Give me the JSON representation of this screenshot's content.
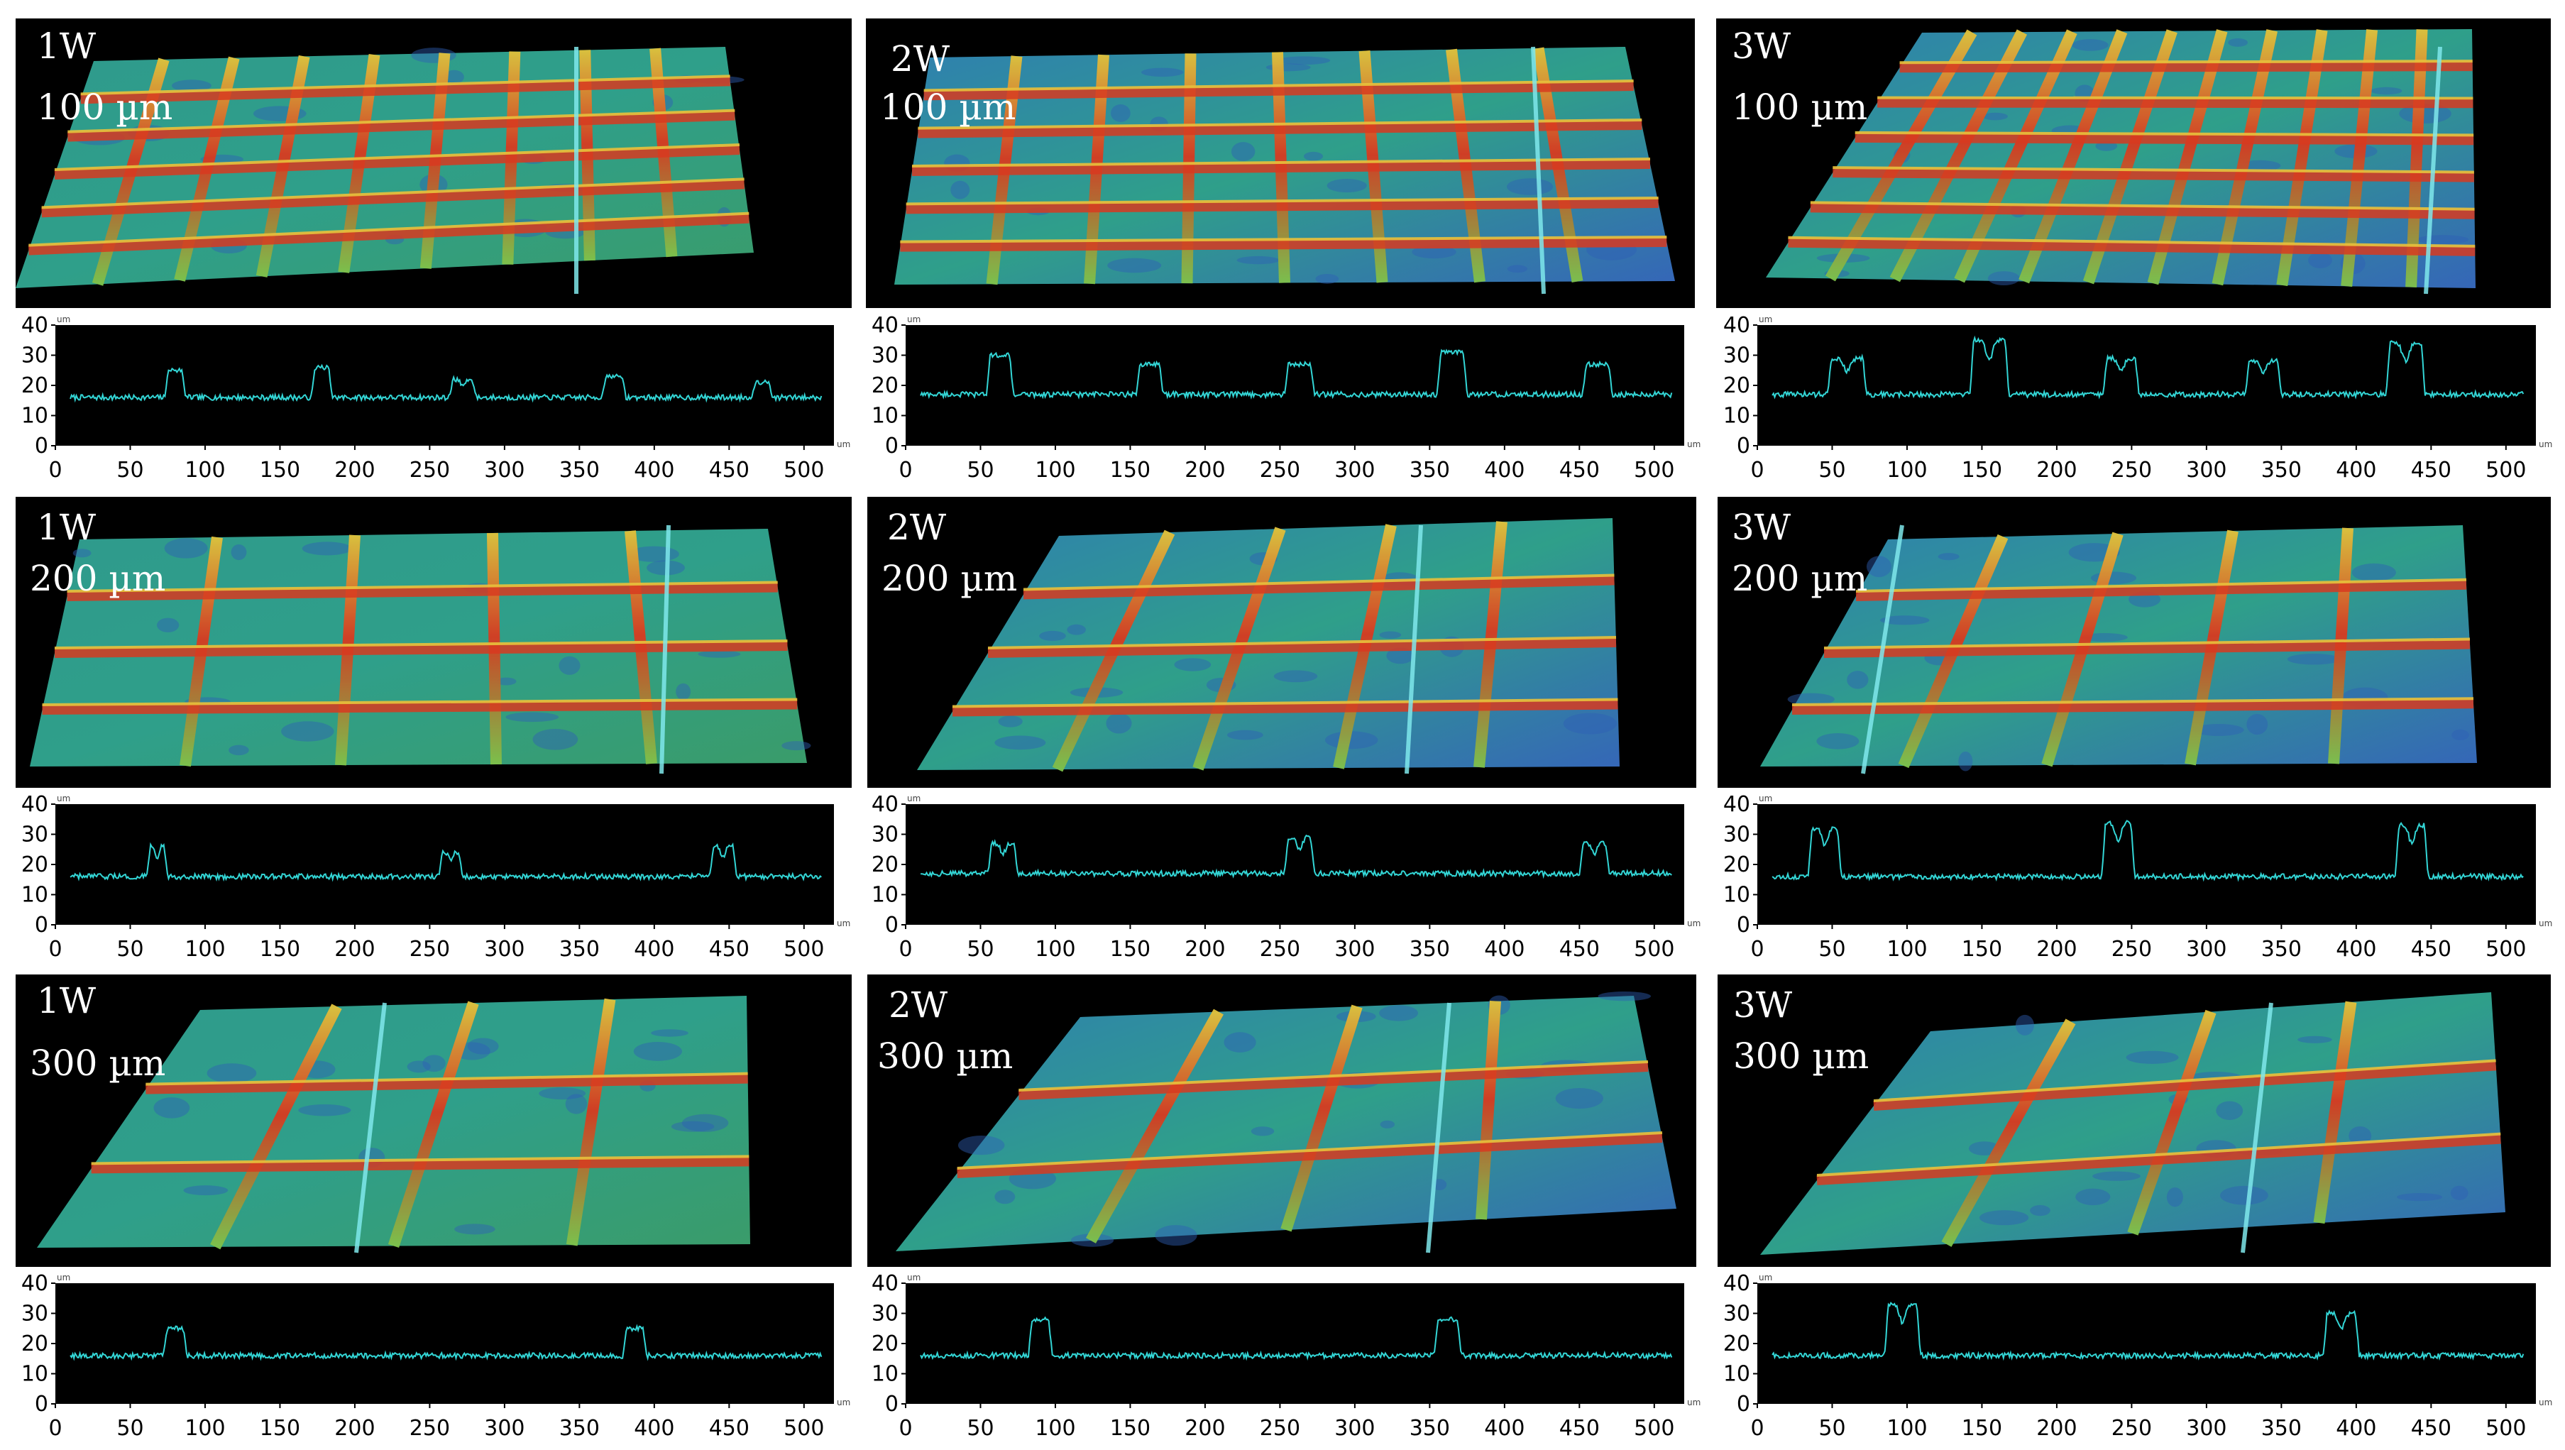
{
  "figure": {
    "colors": {
      "surface_bg": "#000000",
      "profile_bg": "#000000",
      "trace": "#33d6d6",
      "label_text": "#ffffff",
      "tick_text": "#000000",
      "height_low": "#2f5fb5",
      "height_mid": "#2f9f8a",
      "height_high": "#d83a20"
    },
    "colorscale_note": "blue = low, green = mid, yellow/orange/red = high (raised lines)"
  },
  "panels": [
    {
      "power": "1W",
      "spacing": "100 µm"
    },
    {
      "power": "2W",
      "spacing": "100 µm"
    },
    {
      "power": "3W",
      "spacing": "100 µm"
    },
    {
      "power": "1W",
      "spacing": "200 µm"
    },
    {
      "power": "2W",
      "spacing": "200 µm"
    },
    {
      "power": "3W",
      "spacing": "200 µm"
    },
    {
      "power": "1W",
      "spacing": "300 µm"
    },
    {
      "power": "2W",
      "spacing": "300 µm"
    },
    {
      "power": "3W",
      "spacing": "300 µm"
    }
  ],
  "chart_data": [
    {
      "type": "line",
      "power": "1W",
      "spacing_um": 100,
      "xlabel": "um",
      "ylabel": "um",
      "xlim": [
        0,
        520
      ],
      "ylim": [
        0,
        40
      ],
      "xticks": [
        0,
        50,
        100,
        150,
        200,
        250,
        300,
        350,
        400,
        450,
        500
      ],
      "yticks": [
        0,
        10,
        20,
        30,
        40
      ],
      "baseline": 16,
      "peaks": [
        {
          "x": 80,
          "h": 25,
          "w": 14
        },
        {
          "x": 178,
          "h": 26,
          "w": 14
        },
        {
          "x": 272,
          "h": 22,
          "w": 18,
          "dbl": true
        },
        {
          "x": 373,
          "h": 23,
          "w": 16
        },
        {
          "x": 472,
          "h": 21,
          "w": 14
        }
      ]
    },
    {
      "type": "line",
      "power": "2W",
      "spacing_um": 100,
      "xlabel": "um",
      "ylabel": "um",
      "xlim": [
        0,
        520
      ],
      "ylim": [
        0,
        40
      ],
      "xticks": [
        0,
        50,
        100,
        150,
        200,
        250,
        300,
        350,
        400,
        450,
        500
      ],
      "yticks": [
        0,
        10,
        20,
        30,
        40
      ],
      "baseline": 17,
      "peaks": [
        {
          "x": 63,
          "h": 30,
          "w": 18
        },
        {
          "x": 163,
          "h": 27,
          "w": 18
        },
        {
          "x": 263,
          "h": 27,
          "w": 20
        },
        {
          "x": 365,
          "h": 31,
          "w": 20
        },
        {
          "x": 462,
          "h": 27,
          "w": 20
        }
      ]
    },
    {
      "type": "line",
      "power": "3W",
      "spacing_um": 100,
      "xlabel": "um",
      "ylabel": "um",
      "xlim": [
        0,
        520
      ],
      "ylim": [
        0,
        40
      ],
      "xticks": [
        0,
        50,
        100,
        150,
        200,
        250,
        300,
        350,
        400,
        450,
        500
      ],
      "yticks": [
        0,
        10,
        20,
        30,
        40
      ],
      "baseline": 17,
      "peaks": [
        {
          "x": 60,
          "h": 29,
          "w": 26,
          "dbl": true
        },
        {
          "x": 155,
          "h": 35,
          "w": 26,
          "dbl": true
        },
        {
          "x": 243,
          "h": 29,
          "w": 24,
          "dbl": true
        },
        {
          "x": 338,
          "h": 28,
          "w": 24,
          "dbl": true
        },
        {
          "x": 433,
          "h": 34,
          "w": 26,
          "dbl": true
        }
      ]
    },
    {
      "type": "line",
      "power": "1W",
      "spacing_um": 200,
      "xlabel": "um",
      "ylabel": "um",
      "xlim": [
        0,
        520
      ],
      "ylim": [
        0,
        40
      ],
      "xticks": [
        0,
        50,
        100,
        150,
        200,
        250,
        300,
        350,
        400,
        450,
        500
      ],
      "yticks": [
        0,
        10,
        20,
        30,
        40
      ],
      "baseline": 16,
      "peaks": [
        {
          "x": 68,
          "h": 26,
          "w": 14,
          "dbl": true
        },
        {
          "x": 264,
          "h": 24,
          "w": 16,
          "dbl": true
        },
        {
          "x": 446,
          "h": 26,
          "w": 18,
          "dbl": true
        }
      ]
    },
    {
      "type": "line",
      "power": "2W",
      "spacing_um": 200,
      "xlabel": "um",
      "ylabel": "um",
      "xlim": [
        0,
        520
      ],
      "ylim": [
        0,
        40
      ],
      "xticks": [
        0,
        50,
        100,
        150,
        200,
        250,
        300,
        350,
        400,
        450,
        500
      ],
      "yticks": [
        0,
        10,
        20,
        30,
        40
      ],
      "baseline": 17,
      "peaks": [
        {
          "x": 65,
          "h": 27,
          "w": 20,
          "dbl": true
        },
        {
          "x": 263,
          "h": 29,
          "w": 20,
          "dbl": true
        },
        {
          "x": 460,
          "h": 27,
          "w": 20,
          "dbl": true
        }
      ]
    },
    {
      "type": "line",
      "power": "3W",
      "spacing_um": 200,
      "xlabel": "um",
      "ylabel": "um",
      "xlim": [
        0,
        520
      ],
      "ylim": [
        0,
        40
      ],
      "xticks": [
        0,
        50,
        100,
        150,
        200,
        250,
        300,
        350,
        400,
        450,
        500
      ],
      "yticks": [
        0,
        10,
        20,
        30,
        40
      ],
      "baseline": 16,
      "peaks": [
        {
          "x": 45,
          "h": 32,
          "w": 22,
          "dbl": true
        },
        {
          "x": 241,
          "h": 34,
          "w": 22,
          "dbl": true
        },
        {
          "x": 437,
          "h": 33,
          "w": 22,
          "dbl": true
        }
      ]
    },
    {
      "type": "line",
      "power": "1W",
      "spacing_um": 300,
      "xlabel": "um",
      "ylabel": "um",
      "xlim": [
        0,
        520
      ],
      "ylim": [
        0,
        40
      ],
      "xticks": [
        0,
        50,
        100,
        150,
        200,
        250,
        300,
        350,
        400,
        450,
        500
      ],
      "yticks": [
        0,
        10,
        20,
        30,
        40
      ],
      "baseline": 16,
      "peaks": [
        {
          "x": 80,
          "h": 25,
          "w": 16
        },
        {
          "x": 387,
          "h": 25,
          "w": 16
        }
      ]
    },
    {
      "type": "line",
      "power": "2W",
      "spacing_um": 300,
      "xlabel": "um",
      "ylabel": "um",
      "xlim": [
        0,
        520
      ],
      "ylim": [
        0,
        40
      ],
      "xticks": [
        0,
        50,
        100,
        150,
        200,
        250,
        300,
        350,
        400,
        450,
        500
      ],
      "yticks": [
        0,
        10,
        20,
        30,
        40
      ],
      "baseline": 16,
      "peaks": [
        {
          "x": 90,
          "h": 28,
          "w": 16
        },
        {
          "x": 362,
          "h": 28,
          "w": 18
        }
      ]
    },
    {
      "type": "line",
      "power": "3W",
      "spacing_um": 300,
      "xlabel": "um",
      "ylabel": "um",
      "xlim": [
        0,
        520
      ],
      "ylim": [
        0,
        40
      ],
      "xticks": [
        0,
        50,
        100,
        150,
        200,
        250,
        300,
        350,
        400,
        450,
        500
      ],
      "yticks": [
        0,
        10,
        20,
        30,
        40
      ],
      "baseline": 16,
      "peaks": [
        {
          "x": 97,
          "h": 33,
          "w": 24,
          "dbl": true
        },
        {
          "x": 390,
          "h": 30,
          "w": 24,
          "dbl": true
        }
      ]
    }
  ]
}
